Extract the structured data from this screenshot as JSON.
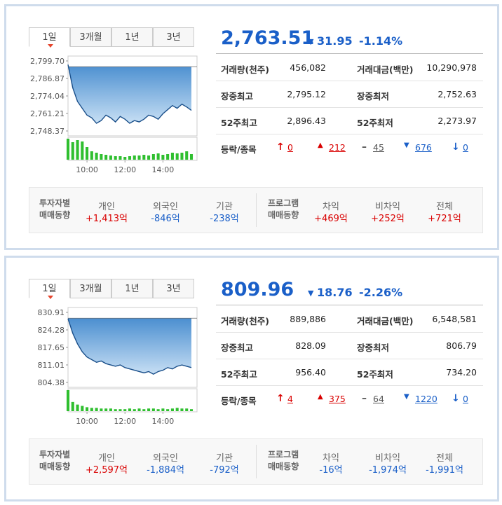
{
  "panels": [
    {
      "tabs": [
        "1일",
        "3개월",
        "1년",
        "3년"
      ],
      "price": "2,763.51",
      "change": "31.95",
      "change_pct": "-1.14%",
      "stats": [
        [
          "거래량(천주)",
          "456,082",
          "거래대금(백만)",
          "10,290,978"
        ],
        [
          "장중최고",
          "2,795.12",
          "장중최저",
          "2,752.63"
        ],
        [
          "52주최고",
          "2,896.43",
          "52주최저",
          "2,273.97"
        ]
      ],
      "breadth": {
        "label": "등락/종목",
        "values": [
          "0",
          "212",
          "45",
          "676",
          "0"
        ]
      },
      "chart": {
        "type": "area",
        "xlim": [
          0,
          390
        ],
        "xticks": [
          {
            "value": 60,
            "label": "10:00"
          },
          {
            "value": 180,
            "label": "12:00"
          },
          {
            "value": 300,
            "label": "14:00"
          }
        ],
        "ylim": [
          2748.37,
          2799.7
        ],
        "yticks": [
          {
            "value": 2799.7,
            "label": "2,799.70"
          },
          {
            "value": 2786.87,
            "label": "2,786.87"
          },
          {
            "value": 2774.04,
            "label": "2,774.04"
          },
          {
            "value": 2761.21,
            "label": "2,761.21"
          },
          {
            "value": 2748.37,
            "label": "2,748.37"
          }
        ],
        "baseline": 2795.46,
        "x": [
          0,
          15,
          30,
          45,
          60,
          75,
          90,
          105,
          120,
          135,
          150,
          165,
          180,
          195,
          210,
          225,
          240,
          255,
          270,
          285,
          300,
          315,
          330,
          345,
          360,
          375,
          390
        ],
        "values": [
          2797,
          2780,
          2770,
          2765,
          2760,
          2758,
          2754,
          2756,
          2760,
          2758,
          2755,
          2759,
          2757,
          2754,
          2756,
          2755,
          2757,
          2760,
          2759,
          2757,
          2761,
          2764,
          2767,
          2765,
          2768,
          2766,
          2763.5
        ],
        "volume": [
          30,
          25,
          28,
          26,
          18,
          12,
          10,
          8,
          7,
          6,
          5,
          5,
          4,
          5,
          6,
          6,
          7,
          6,
          8,
          9,
          7,
          8,
          10,
          9,
          10,
          12,
          8
        ]
      },
      "investors": [
        {
          "label": [
            "투자자별",
            "매매동향"
          ],
          "items": [
            {
              "name": "개인",
              "value": "+1,413억"
            },
            {
              "name": "외국인",
              "value": "-846억"
            },
            {
              "name": "기관",
              "value": "-238억"
            }
          ]
        },
        {
          "label": [
            "프로그램",
            "매매동향"
          ],
          "items": [
            {
              "name": "차익",
              "value": "+469억"
            },
            {
              "name": "비차익",
              "value": "+252억"
            },
            {
              "name": "전체",
              "value": "+721억"
            }
          ]
        }
      ]
    },
    {
      "tabs": [
        "1일",
        "3개월",
        "1년",
        "3년"
      ],
      "price": "809.96",
      "change": "18.76",
      "change_pct": "-2.26%",
      "stats": [
        [
          "거래량(천주)",
          "889,886",
          "거래대금(백만)",
          "6,548,581"
        ],
        [
          "장중최고",
          "828.09",
          "장중최저",
          "806.79"
        ],
        [
          "52주최고",
          "956.40",
          "52주최저",
          "734.20"
        ]
      ],
      "breadth": {
        "label": "등락/종목",
        "values": [
          "4",
          "375",
          "64",
          "1220",
          "0"
        ]
      },
      "chart": {
        "type": "area",
        "xlim": [
          0,
          390
        ],
        "xticks": [
          {
            "value": 60,
            "label": "10:00"
          },
          {
            "value": 180,
            "label": "12:00"
          },
          {
            "value": 300,
            "label": "14:00"
          }
        ],
        "ylim": [
          804.38,
          830.91
        ],
        "yticks": [
          830.91,
          824.28,
          817.65,
          811.01,
          804.38
        ],
        "baseline": 828.72,
        "x": [
          0,
          15,
          30,
          45,
          60,
          75,
          90,
          105,
          120,
          135,
          150,
          165,
          180,
          195,
          210,
          225,
          240,
          255,
          270,
          285,
          300,
          315,
          330,
          345,
          360,
          375,
          390
        ],
        "values": [
          828.5,
          823,
          819,
          816,
          814,
          813,
          812,
          812.5,
          811.5,
          811,
          810.5,
          811,
          810,
          809.5,
          809,
          808.5,
          808,
          808.5,
          807.5,
          808.5,
          809,
          810,
          809.5,
          810.5,
          811,
          810.5,
          810
        ],
        "volume": [
          32,
          14,
          10,
          8,
          6,
          5,
          5,
          4,
          4,
          4,
          3,
          3,
          3,
          4,
          3,
          4,
          3,
          4,
          4,
          3,
          4,
          3,
          4,
          5,
          4,
          4,
          3
        ]
      },
      "investors": [
        {
          "label": [
            "투자자별",
            "매매동향"
          ],
          "items": [
            {
              "name": "개인",
              "value": "+2,597억"
            },
            {
              "name": "외국인",
              "value": "-1,884억"
            },
            {
              "name": "기관",
              "value": "-792억"
            }
          ]
        },
        {
          "label": [
            "프로그램",
            "매매동향"
          ],
          "items": [
            {
              "name": "차익",
              "value": "-16억"
            },
            {
              "name": "비차익",
              "value": "-1,974억"
            },
            {
              "name": "전체",
              "value": "-1,991억"
            }
          ]
        }
      ]
    }
  ]
}
